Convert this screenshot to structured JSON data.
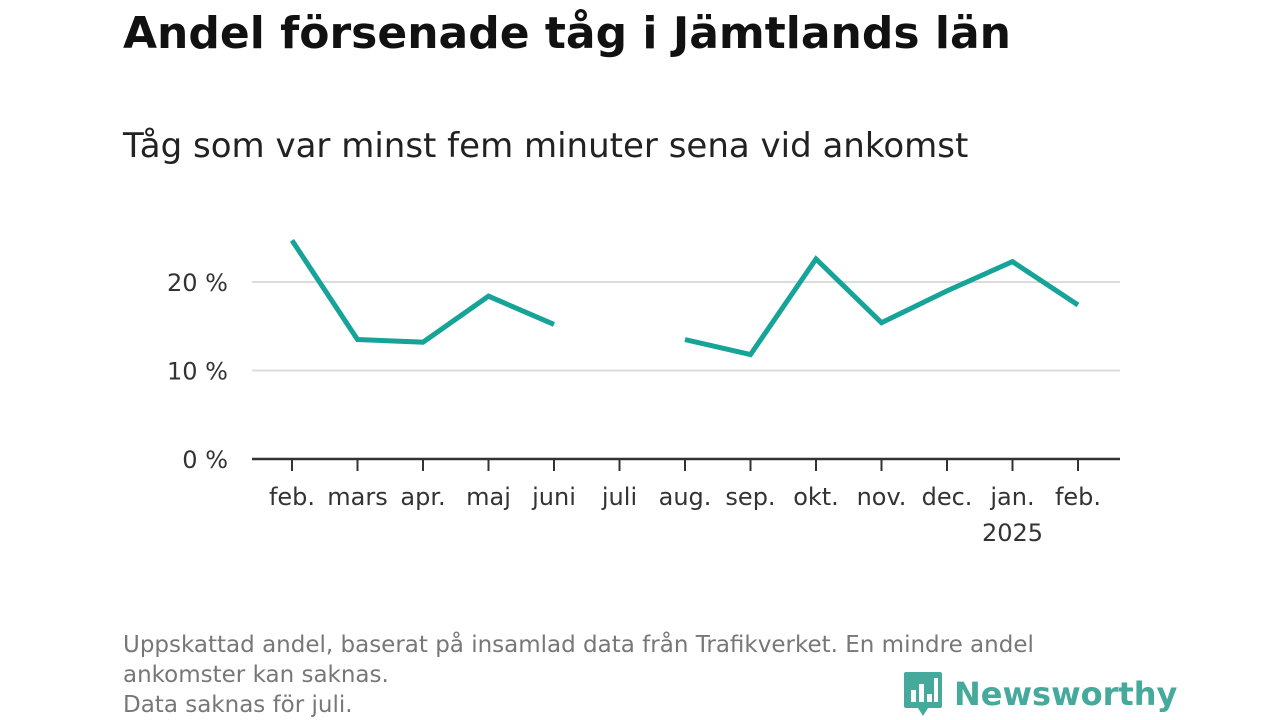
{
  "title": "Andel försenade tåg i Jämtlands län",
  "subtitle": "Tåg som var minst fem minuter sena vid ankomst",
  "footnote": {
    "line1": "Uppskattad andel, baserat på insamlad data från Trafikverket. En mindre andel",
    "line2": "ankomster kan saknas.",
    "line3": "Data saknas för juli."
  },
  "logo_text": "Newsworthy",
  "colors": {
    "line": "#16a398",
    "grid": "#dcdcdc",
    "axis": "#333333",
    "brand": "#45a99b"
  },
  "chart_data": {
    "type": "line",
    "categories": [
      "feb.",
      "mars",
      "apr.",
      "maj",
      "juni",
      "juli",
      "aug.",
      "sep.",
      "okt.",
      "nov.",
      "dec.",
      "jan.",
      "feb."
    ],
    "category_sublabels": [
      "",
      "",
      "",
      "",
      "",
      "",
      "",
      "",
      "",
      "",
      "",
      "2025",
      ""
    ],
    "series": [
      {
        "values": [
          24.7,
          13.5,
          13.2,
          18.4,
          15.2,
          null,
          13.5,
          11.8,
          22.6,
          15.4,
          19.0,
          22.3,
          17.4
        ]
      }
    ],
    "yticks": [
      0,
      10,
      20
    ],
    "ytick_labels": [
      "0 %",
      "10 %",
      "20 %"
    ],
    "ylim": [
      0,
      25
    ],
    "grid": true,
    "xlabel": "",
    "ylabel": ""
  }
}
